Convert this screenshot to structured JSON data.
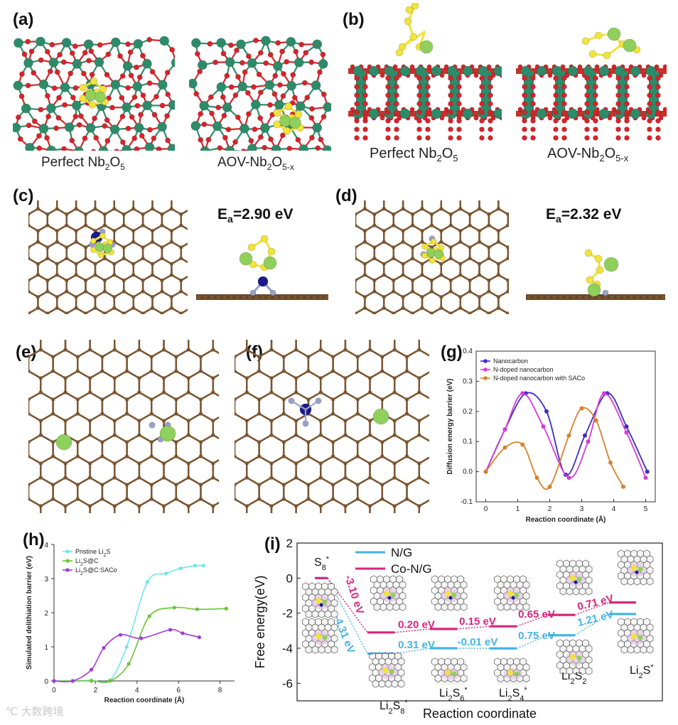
{
  "panels": {
    "a": {
      "label": "(a)",
      "caption_left": "Perfect Nb",
      "caption_left_sub": "2",
      "caption_left_tail": "O",
      "caption_left_sub2": "5",
      "caption_right": "AOV-Nb",
      "caption_right_sub": "2",
      "caption_right_tail": "O",
      "caption_right_sub2": "5-x"
    },
    "b": {
      "label": "(b)",
      "caption_left": "Perfect Nb",
      "caption_left_sub": "2",
      "caption_left_tail": "O",
      "caption_left_sub2": "5",
      "caption_right": "AOV-Nb",
      "caption_right_sub": "2",
      "caption_right_tail": "O",
      "caption_right_sub2": "5-x"
    },
    "c": {
      "label": "(c)",
      "ea_prefix": "E",
      "ea_sub": "a",
      "ea_value": "=2.90 eV"
    },
    "d": {
      "label": "(d)",
      "ea_prefix": "E",
      "ea_sub": "a",
      "ea_value": "=2.32 eV"
    },
    "e": {
      "label": "(e)"
    },
    "f": {
      "label": "(f)"
    },
    "g": {
      "label": "(g)"
    },
    "h": {
      "label": "(h)"
    },
    "i": {
      "label": "(i)"
    }
  },
  "colors": {
    "nb_atom": "#2e8b6a",
    "o_atom": "#d8232a",
    "s_atom": "#f2e33b",
    "li_atom": "#8fcf5c",
    "c_atom": "#7a5530",
    "n_atom": "#9aa0c8",
    "co_atom": "#1a1a8c",
    "g_nanocarbon": "#3a2fc0",
    "g_ndoped": "#d63cd6",
    "g_saco": "#d9822b",
    "h_pristine": "#6fe6ea",
    "h_li2sc": "#6cc437",
    "h_saco": "#a23ad6",
    "i_ng": "#45b4e6",
    "i_cong": "#d6267e"
  },
  "chart_data": [
    {
      "id": "g",
      "type": "line",
      "title": "",
      "xlabel": "Reaction coordinate (Å)",
      "ylabel": "Diffusion energy barrier (eV)",
      "xlim": [
        -0.3,
        5.3
      ],
      "ylim": [
        -0.1,
        0.4
      ],
      "xticks": [
        "0",
        "1",
        "2",
        "3",
        "4",
        "5"
      ],
      "yticks": [
        "-0.1",
        "0.0",
        "0.1",
        "0.2",
        "0.3",
        "0.4"
      ],
      "legend_position": "top-left",
      "series": [
        {
          "name": "Nanocarbon",
          "x": [
            0,
            0.6,
            1.25,
            1.9,
            2.5,
            3.1,
            3.8,
            4.4,
            5.05
          ],
          "y": [
            0.0,
            0.14,
            0.26,
            0.2,
            -0.01,
            0.12,
            0.26,
            0.15,
            0.0
          ]
        },
        {
          "name": "N-doped nanocarbon",
          "x": [
            0,
            0.6,
            1.15,
            1.8,
            2.6,
            3.2,
            3.7,
            4.4,
            5.0
          ],
          "y": [
            0.0,
            0.14,
            0.26,
            0.15,
            -0.02,
            0.1,
            0.26,
            0.13,
            -0.02
          ]
        },
        {
          "name": "N-doped nanocarbon with SACo",
          "x": [
            0,
            0.6,
            1.15,
            1.6,
            2.0,
            2.6,
            3.0,
            3.45,
            3.9,
            4.3
          ],
          "y": [
            0.0,
            0.08,
            0.09,
            -0.02,
            -0.05,
            0.12,
            0.21,
            0.17,
            0.03,
            -0.05
          ]
        }
      ]
    },
    {
      "id": "h",
      "type": "line",
      "title": "",
      "xlabel": "Reaction coordinate (Å)",
      "ylabel": "Simulated delithiation barrier (eV)",
      "xlim": [
        0,
        8.7
      ],
      "ylim": [
        0,
        4
      ],
      "xticks": [
        "0",
        "2",
        "4",
        "6",
        "8"
      ],
      "yticks": [
        "0",
        "1",
        "2",
        "3",
        "4"
      ],
      "legend_position": "top-left",
      "series": [
        {
          "name": "Pristine Li",
          "name_sub": "2",
          "name_tail": "S",
          "x": [
            0,
            0.9,
            1.8,
            2.7,
            3.5,
            4.5,
            5.4,
            6.1,
            6.8,
            7.2
          ],
          "y": [
            0,
            0,
            0.02,
            0.02,
            1.0,
            2.9,
            3.15,
            3.3,
            3.38,
            3.38
          ]
        },
        {
          "name": "Li",
          "name_sub": "2",
          "name_tail": "S@C",
          "x": [
            0,
            0.9,
            1.8,
            2.7,
            3.6,
            4.6,
            5.8,
            6.9,
            8.3
          ],
          "y": [
            0,
            0,
            0,
            0,
            0.5,
            1.9,
            2.15,
            2.1,
            2.12
          ]
        },
        {
          "name": "Li",
          "name_sub": "2",
          "name_tail": "S@C:SACo",
          "x": [
            0,
            0.9,
            1.8,
            2.4,
            3.2,
            4.2,
            5.6,
            6.2,
            7.0
          ],
          "y": [
            0,
            0,
            0.33,
            0.97,
            1.35,
            1.25,
            1.5,
            1.4,
            1.28
          ]
        }
      ]
    },
    {
      "id": "i",
      "type": "line",
      "title": "",
      "xlabel": "Reaction coordinate",
      "ylabel": "Free energy(eV)",
      "ylim": [
        -7,
        2
      ],
      "yticks": [
        "2",
        "0",
        "-2",
        "-4",
        "-6"
      ],
      "legend_position": "top-left",
      "species": [
        {
          "name": "S",
          "sub": "8",
          "sup": "*"
        },
        {
          "name": "Li",
          "sub": "2",
          "tail": "S",
          "sub2": "8",
          "sup": "*"
        },
        {
          "name": "Li",
          "sub": "2",
          "tail": "S",
          "sub2": "6",
          "sup": "*"
        },
        {
          "name": "Li",
          "sub": "2",
          "tail": "S",
          "sub2": "4",
          "sup": "*"
        },
        {
          "name": "Li",
          "sub": "2",
          "tail": "S",
          "sub2": "2",
          "sup": "*"
        },
        {
          "name": "Li",
          "sub": "2",
          "tail": "S",
          "sub2": "",
          "sup": "*"
        }
      ],
      "series": [
        {
          "name": "N/G",
          "levels": [
            0,
            -4.31,
            -4.0,
            -4.01,
            -3.26,
            -2.05
          ],
          "steps": [
            "-4.31 eV",
            "0.31 eV",
            "-0.01 eV",
            "0.75 eV",
            "1.21 eV"
          ]
        },
        {
          "name": "Co-N/G",
          "levels": [
            0,
            -3.1,
            -2.9,
            -2.75,
            -2.1,
            -1.39
          ],
          "steps": [
            "-3.10 eV",
            "0.20 eV",
            "0.15 eV",
            "0.65 eV",
            "0.71 eV"
          ]
        }
      ]
    }
  ],
  "watermark": "大数跨境"
}
